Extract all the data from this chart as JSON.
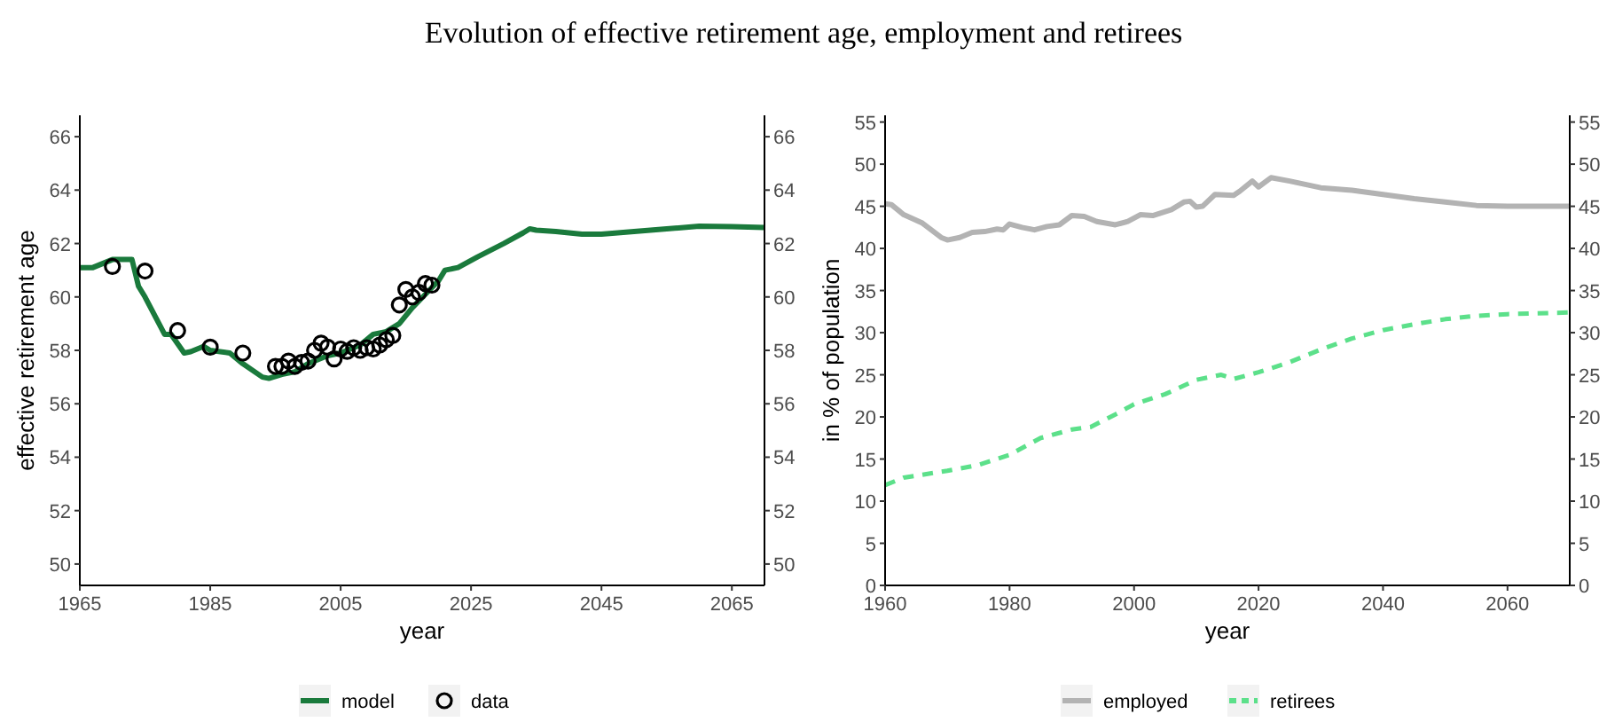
{
  "chart_data": [
    {
      "type": "line",
      "title": "Evolution of effective retirement age, employment and retirees",
      "xlabel": "year",
      "ylabel": "effective retirement age",
      "xlim": [
        1965,
        2070
      ],
      "xticks": [
        1965,
        1985,
        2005,
        2025,
        2045,
        2065
      ],
      "ylim": [
        49.2,
        66.8
      ],
      "yticks": [
        50,
        52,
        54,
        56,
        58,
        60,
        62,
        64,
        66
      ],
      "y2lim": [
        49.2,
        66.8
      ],
      "y2ticks": [
        50,
        52,
        54,
        56,
        58,
        60,
        62,
        64,
        66
      ],
      "legend": "bottom",
      "series": [
        {
          "name": "model",
          "type": "line",
          "color": "#1a7a3c",
          "line_style": "solid",
          "x": [
            1965,
            1967,
            1969,
            1970,
            1973,
            1974,
            1975,
            1978,
            1979,
            1981,
            1982,
            1984,
            1985,
            1988,
            1990,
            1993,
            1994,
            1996,
            1998,
            2000,
            2003,
            2005,
            2008,
            2010,
            2012,
            2014,
            2016,
            2018,
            2020,
            2021,
            2023,
            2026,
            2030,
            2033,
            2034,
            2035,
            2038,
            2042,
            2045,
            2050,
            2055,
            2060,
            2065,
            2070
          ],
          "values": [
            61.1,
            61.1,
            61.3,
            61.4,
            61.4,
            60.4,
            60.0,
            58.6,
            58.6,
            57.9,
            57.95,
            58.15,
            58.0,
            57.9,
            57.5,
            57.0,
            56.95,
            57.1,
            57.2,
            57.5,
            57.8,
            57.9,
            58.2,
            58.6,
            58.7,
            59.0,
            59.6,
            60.1,
            60.6,
            61.0,
            61.1,
            61.5,
            62.0,
            62.4,
            62.55,
            62.5,
            62.45,
            62.35,
            62.35,
            62.45,
            62.55,
            62.65,
            62.63,
            62.6
          ]
        },
        {
          "name": "data",
          "type": "scatter",
          "marker": "circle",
          "color": "#000000",
          "x": [
            1970,
            1975,
            1980,
            1985,
            1990,
            1995,
            1996,
            1997,
            1998,
            1999,
            2000,
            2001,
            2002,
            2003,
            2004,
            2005,
            2006,
            2007,
            2008,
            2009,
            2010,
            2011,
            2012,
            2013,
            2014,
            2015,
            2016,
            2017,
            2018,
            2019
          ],
          "values": [
            61.14,
            60.97,
            58.74,
            58.12,
            57.9,
            57.4,
            57.4,
            57.6,
            57.4,
            57.55,
            57.6,
            58.0,
            58.27,
            58.12,
            57.68,
            58.05,
            57.96,
            58.1,
            58.0,
            58.1,
            58.05,
            58.2,
            58.4,
            58.56,
            59.7,
            60.28,
            60.0,
            60.17,
            60.5,
            60.44
          ]
        }
      ]
    },
    {
      "type": "line",
      "xlabel": "year",
      "ylabel": "in % of population",
      "xlim": [
        1960,
        2070
      ],
      "xticks": [
        1960,
        1980,
        2000,
        2020,
        2040,
        2060
      ],
      "ylim": [
        0,
        55.8
      ],
      "yticks": [
        0,
        5,
        10,
        15,
        20,
        25,
        30,
        35,
        40,
        45,
        50,
        55
      ],
      "y2lim": [
        0,
        55.8
      ],
      "y2ticks": [
        0,
        5,
        10,
        15,
        20,
        25,
        30,
        35,
        40,
        45,
        50,
        55
      ],
      "legend": "bottom",
      "series": [
        {
          "name": "employed",
          "color": "#b3b3b3",
          "line_style": "solid",
          "x": [
            1960,
            1961,
            1963,
            1966,
            1969,
            1970,
            1972,
            1974,
            1976,
            1978,
            1979,
            1980,
            1982,
            1984,
            1986,
            1988,
            1990,
            1992,
            1994,
            1997,
            1999,
            2001,
            2003,
            2006,
            2008,
            2009,
            2010,
            2011,
            2013,
            2016,
            2017,
            2019,
            2020,
            2022,
            2025,
            2030,
            2035,
            2040,
            2045,
            2050,
            2055,
            2060,
            2070
          ],
          "values": [
            45.3,
            45.2,
            44.0,
            43.0,
            41.3,
            41.0,
            41.3,
            41.9,
            42.0,
            42.3,
            42.2,
            42.9,
            42.5,
            42.2,
            42.6,
            42.8,
            43.9,
            43.8,
            43.2,
            42.8,
            43.2,
            44.0,
            43.9,
            44.6,
            45.5,
            45.6,
            44.9,
            45.0,
            46.4,
            46.3,
            46.8,
            48.0,
            47.3,
            48.4,
            48.0,
            47.2,
            46.9,
            46.4,
            45.9,
            45.5,
            45.1,
            45.0,
            45.0
          ]
        },
        {
          "name": "retirees",
          "color": "#5ce08a",
          "line_style": "dashed",
          "x": [
            1960,
            1963,
            1970,
            1975,
            1980,
            1985,
            1990,
            1993,
            1997,
            2000,
            2005,
            2010,
            2014,
            2016,
            2020,
            2025,
            2030,
            2035,
            2040,
            2045,
            2050,
            2055,
            2060,
            2070
          ],
          "values": [
            11.9,
            12.8,
            13.6,
            14.3,
            15.5,
            17.5,
            18.5,
            18.8,
            20.3,
            21.5,
            22.7,
            24.4,
            25.0,
            24.5,
            25.3,
            26.5,
            28.0,
            29.3,
            30.3,
            31.0,
            31.6,
            32.0,
            32.2,
            32.4
          ]
        }
      ]
    }
  ]
}
